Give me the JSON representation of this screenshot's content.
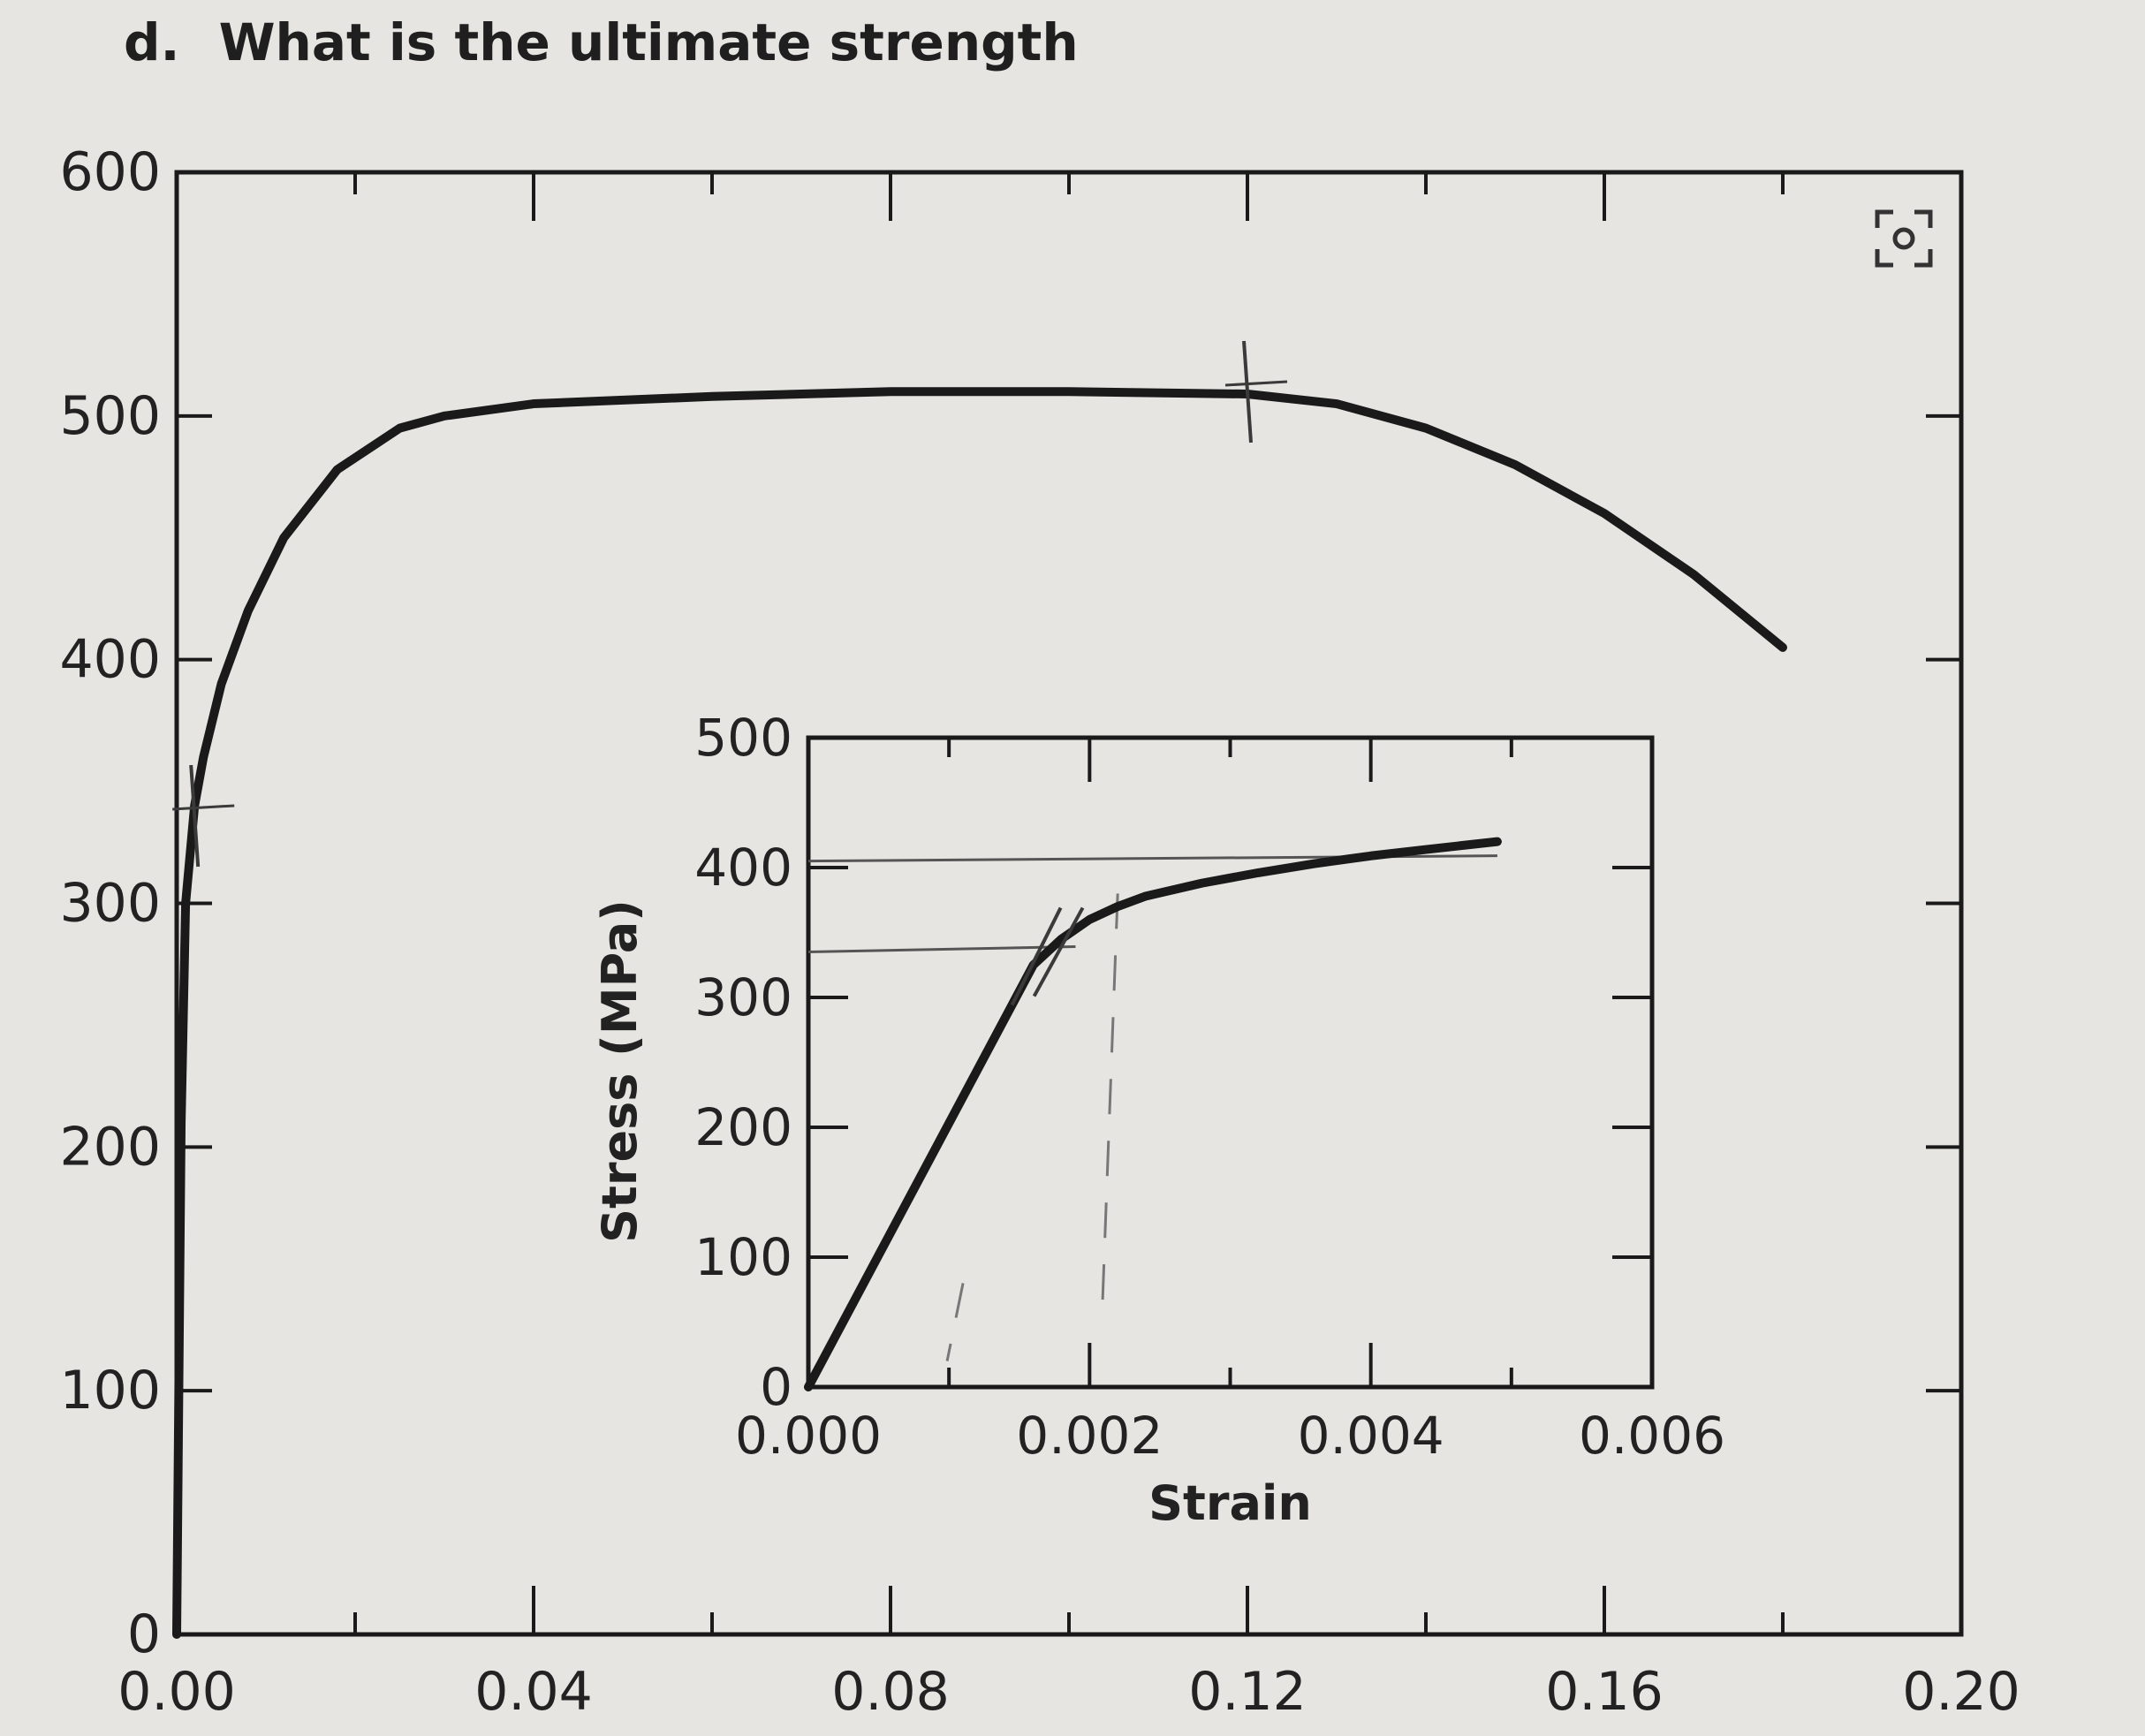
{
  "question": {
    "letter": "d.",
    "text": "What is the ultimate strength"
  },
  "chart_data": [
    {
      "type": "line",
      "title": "",
      "xlabel": "",
      "ylabel": "",
      "xlim": [
        0,
        0.2
      ],
      "ylim": [
        0,
        600
      ],
      "x_ticks": [
        "0.00",
        "0.04",
        "0.08",
        "0.12",
        "0.16",
        "0.20"
      ],
      "y_ticks": [
        "0",
        "100",
        "200",
        "300",
        "400",
        "500",
        "600"
      ],
      "grid": false,
      "series": [
        {
          "x": [
            0.0,
            0.0005,
            0.001,
            0.002,
            0.003,
            0.005,
            0.008,
            0.012,
            0.018,
            0.025,
            0.03,
            0.04,
            0.06,
            0.08,
            0.1,
            0.12,
            0.13,
            0.14,
            0.15,
            0.16,
            0.17,
            0.18
          ],
          "y": [
            0,
            210,
            300,
            340,
            360,
            390,
            420,
            450,
            478,
            495,
            500,
            505,
            508,
            510,
            510,
            509,
            505,
            495,
            480,
            460,
            435,
            405
          ]
        }
      ],
      "annotations": [
        {
          "type": "tick-mark",
          "x": 0.12,
          "y": 509
        },
        {
          "type": "tick-mark",
          "x": 0.002,
          "y": 335
        }
      ]
    },
    {
      "type": "line",
      "title": "",
      "xlabel": "Strain",
      "ylabel": "Stress (MPa)",
      "xlim": [
        0,
        0.006
      ],
      "ylim": [
        0,
        500
      ],
      "x_ticks": [
        "0.000",
        "0.002",
        "0.004",
        "0.006"
      ],
      "y_ticks": [
        "0",
        "100",
        "200",
        "300",
        "400",
        "500"
      ],
      "grid": false,
      "series": [
        {
          "x": [
            0.0,
            0.0016,
            0.0018,
            0.002,
            0.0022,
            0.0024,
            0.0028,
            0.0032,
            0.0036,
            0.004,
            0.0044,
            0.0049
          ],
          "y": [
            0,
            325,
            345,
            360,
            370,
            378,
            388,
            396,
            403,
            409,
            414,
            420
          ]
        }
      ],
      "annotations": [
        {
          "type": "hand-line",
          "y": 335,
          "from_x": 0.0,
          "to_x": 0.0019
        },
        {
          "type": "hand-line",
          "y": 405,
          "from_x": 0.0,
          "to_x": 0.0049
        },
        {
          "type": "hand-line",
          "x": 0.0022,
          "from_y": 50,
          "to_y": 380
        },
        {
          "type": "hand-line",
          "x": 0.0011,
          "from_y": 20,
          "to_y": 80
        }
      ]
    }
  ]
}
